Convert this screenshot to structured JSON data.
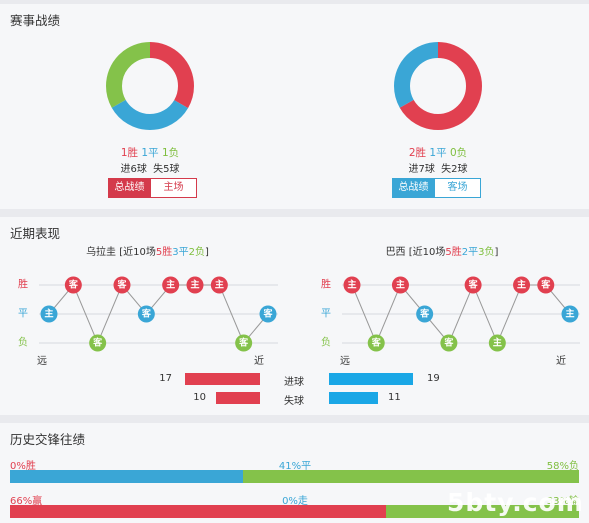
{
  "record": {
    "title": "赛事战绩",
    "home": {
      "win": 1,
      "draw": 1,
      "loss": 1,
      "win_text": "1胜",
      "draw_text": "1平",
      "loss_text": "1负",
      "goals_text": "进6球  失5球",
      "tab_all": "总战绩",
      "tab_side": "主场"
    },
    "away": {
      "win": 2,
      "draw": 1,
      "loss": 0,
      "win_text": "2胜",
      "draw_text": "1平",
      "loss_text": "0负",
      "goals_text": "进7球  失2球",
      "tab_all": "总战绩",
      "tab_side": "客场"
    }
  },
  "recent": {
    "title": "近期表现",
    "home": {
      "team": "乌拉圭",
      "prefix": "[近10场",
      "w": "5胜",
      "d": "3平",
      "l": "2负",
      "suffix": "]",
      "results": [
        "D",
        "W",
        "L",
        "W",
        "D",
        "W",
        "W",
        "W",
        "L",
        "D"
      ],
      "venues": [
        "主",
        "客",
        "客",
        "客",
        "客",
        "主",
        "主",
        "主",
        "客",
        "客"
      ]
    },
    "away": {
      "team": "巴西",
      "prefix": "[近10场",
      "w": "5胜",
      "d": "2平",
      "l": "3负",
      "suffix": "]",
      "results": [
        "W",
        "L",
        "W",
        "D",
        "L",
        "W",
        "L",
        "W",
        "W",
        "D"
      ],
      "venues": [
        "主",
        "客",
        "主",
        "客",
        "客",
        "客",
        "主",
        "主",
        "客",
        "主"
      ]
    },
    "axis": {
      "win": "胜",
      "draw": "平",
      "loss": "负",
      "far": "远",
      "near": "近"
    },
    "goals_for": {
      "label": "进球",
      "home": 17,
      "away": 19
    },
    "goals_against": {
      "label": "失球",
      "home": 10,
      "away": 11
    }
  },
  "h2h": {
    "title": "历史交锋往绩",
    "row1": {
      "left": "0%胜",
      "mid": "41%平",
      "right": "58%负",
      "split": 0.41
    },
    "row2": {
      "left": "66%赢",
      "mid": "0%走",
      "right": "33%输",
      "split": 0.66
    }
  },
  "colors": {
    "red": "#e14050",
    "blue": "#3aa6d6",
    "green": "#84c24a",
    "gray_line": "#999999"
  },
  "watermark": "5bty.com"
}
